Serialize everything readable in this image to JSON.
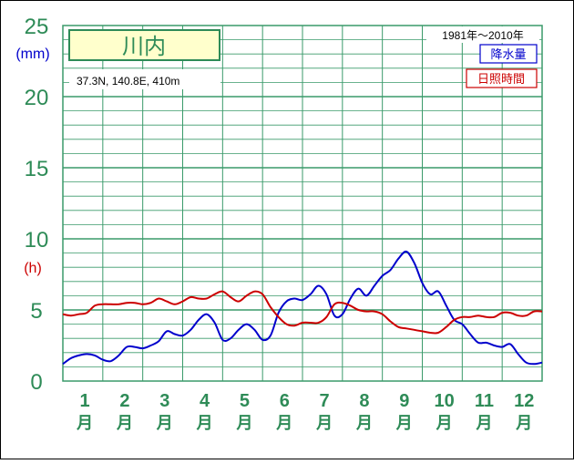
{
  "chart_data": {
    "type": "line",
    "title": "川内",
    "location": "37.3N,  140.8E,  410m",
    "period": "1981年〜2010年",
    "y_unit_precip": "(mm)",
    "y_unit_sun": "(h)",
    "ylim": [
      0,
      25
    ],
    "y_ticks": [
      "0",
      "5",
      "10",
      "15",
      "20",
      "25"
    ],
    "x_ticks": [
      {
        "num": "1",
        "unit": "月"
      },
      {
        "num": "2",
        "unit": "月"
      },
      {
        "num": "3",
        "unit": "月"
      },
      {
        "num": "4",
        "unit": "月"
      },
      {
        "num": "5",
        "unit": "月"
      },
      {
        "num": "6",
        "unit": "月"
      },
      {
        "num": "7",
        "unit": "月"
      },
      {
        "num": "8",
        "unit": "月"
      },
      {
        "num": "9",
        "unit": "月"
      },
      {
        "num": "10",
        "unit": "月"
      },
      {
        "num": "11",
        "unit": "月"
      },
      {
        "num": "12",
        "unit": "月"
      }
    ],
    "x": [
      0.0,
      0.2,
      0.4,
      0.6,
      0.8,
      1.0,
      1.2,
      1.4,
      1.6,
      1.8,
      2.0,
      2.2,
      2.4,
      2.6,
      2.8,
      3.0,
      3.2,
      3.4,
      3.6,
      3.8,
      4.0,
      4.2,
      4.4,
      4.6,
      4.8,
      5.0,
      5.2,
      5.4,
      5.6,
      5.8,
      6.0,
      6.2,
      6.4,
      6.6,
      6.8,
      7.0,
      7.2,
      7.4,
      7.6,
      7.8,
      8.0,
      8.2,
      8.4,
      8.6,
      8.8,
      9.0,
      9.2,
      9.4,
      9.6,
      9.8,
      10.0,
      10.2,
      10.4,
      10.6,
      10.8,
      11.0,
      11.2,
      11.4,
      11.6,
      11.8,
      12.0
    ],
    "series": [
      {
        "name": "降水量",
        "color": "#0000cc",
        "values": [
          1.2,
          1.6,
          1.8,
          1.9,
          1.8,
          1.5,
          1.4,
          1.8,
          2.4,
          2.4,
          2.3,
          2.5,
          2.8,
          3.5,
          3.3,
          3.2,
          3.6,
          4.3,
          4.7,
          4.1,
          2.9,
          3.0,
          3.6,
          4.0,
          3.6,
          2.9,
          3.2,
          4.8,
          5.6,
          5.8,
          5.7,
          6.1,
          6.7,
          6.1,
          4.6,
          4.7,
          5.8,
          6.5,
          6.0,
          6.7,
          7.4,
          7.8,
          8.6,
          9.1,
          8.3,
          6.9,
          6.1,
          6.3,
          5.3,
          4.3,
          4.0,
          3.3,
          2.7,
          2.7,
          2.5,
          2.4,
          2.6,
          1.9,
          1.3,
          1.2,
          1.3
        ]
      },
      {
        "name": "日照時間",
        "color": "#cc0000",
        "values": [
          4.7,
          4.6,
          4.7,
          4.8,
          5.3,
          5.4,
          5.4,
          5.4,
          5.5,
          5.5,
          5.4,
          5.5,
          5.8,
          5.6,
          5.4,
          5.6,
          5.9,
          5.8,
          5.8,
          6.1,
          6.3,
          5.9,
          5.6,
          6.0,
          6.3,
          6.1,
          5.2,
          4.5,
          4.0,
          3.9,
          4.1,
          4.1,
          4.1,
          4.5,
          5.4,
          5.5,
          5.3,
          5.0,
          4.9,
          4.9,
          4.7,
          4.2,
          3.8,
          3.7,
          3.6,
          3.5,
          3.4,
          3.4,
          3.8,
          4.3,
          4.5,
          4.5,
          4.6,
          4.5,
          4.5,
          4.8,
          4.8,
          4.6,
          4.6,
          4.9,
          4.9
        ]
      }
    ],
    "colors": {
      "axis_text": "#2e8b57",
      "grid": "#3a9a6a",
      "title_box_bg": "#ffffcc",
      "precip_unit": "#0000cc",
      "sun_unit": "#cc0000"
    }
  }
}
